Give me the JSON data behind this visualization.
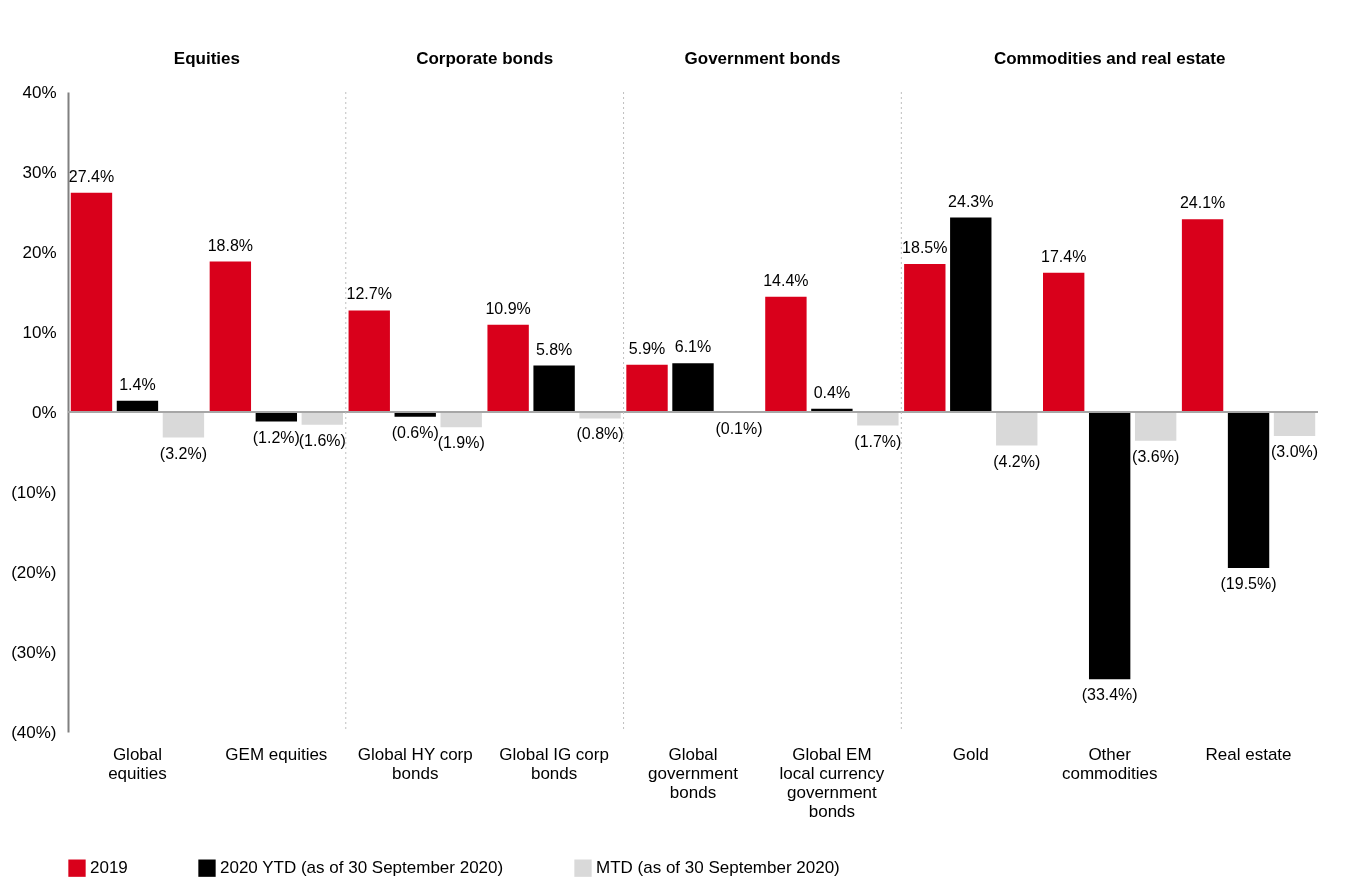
{
  "chart_data": {
    "type": "bar",
    "categories": [
      "Global equities",
      "GEM equities",
      "Global HY corp bonds",
      "Global IG corp bonds",
      "Global government bonds",
      "Global EM local currency government bonds",
      "Gold",
      "Other commodities",
      "Real estate"
    ],
    "series": [
      {
        "name": "2019",
        "color": "#d9001b",
        "values": [
          27.4,
          18.8,
          12.7,
          10.9,
          5.9,
          14.4,
          18.5,
          17.4,
          24.1
        ],
        "value_labels": [
          "27.4%",
          "18.8%",
          "12.7%",
          "10.9%",
          "5.9%",
          "14.4%",
          "18.5%",
          "17.4%",
          "24.1%"
        ]
      },
      {
        "name": "2020 YTD (as of 30 September 2020)",
        "color": "#000000",
        "values": [
          1.4,
          -1.2,
          -0.6,
          5.8,
          6.1,
          0.4,
          24.3,
          -33.4,
          -19.5
        ],
        "value_labels": [
          "1.4%",
          "(1.2%)",
          "(0.6%)",
          "5.8%",
          "6.1%",
          "0.4%",
          "24.3%",
          "(33.4%)",
          "(19.5%)"
        ]
      },
      {
        "name": "MTD (as of 30 September 2020)",
        "color": "#d9d9d9",
        "values": [
          -3.2,
          -1.6,
          -1.9,
          -0.8,
          -0.1,
          -1.7,
          -4.2,
          -3.6,
          -3.0
        ],
        "value_labels": [
          "(3.2%)",
          "(1.6%)",
          "(1.9%)",
          "(0.8%)",
          "(0.1%)",
          "(1.7%)",
          "(4.2%)",
          "(3.6%)",
          "(3.0%)"
        ]
      }
    ],
    "ylim": [
      -40,
      40
    ],
    "yticks": [
      {
        "value": -40,
        "label": "(40%)"
      },
      {
        "value": -30,
        "label": "(30%)"
      },
      {
        "value": -20,
        "label": "(20%)"
      },
      {
        "value": -10,
        "label": "(10%)"
      },
      {
        "value": 0,
        "label": "0%"
      },
      {
        "value": 10,
        "label": "10%"
      },
      {
        "value": 20,
        "label": "20%"
      },
      {
        "value": 30,
        "label": "30%"
      },
      {
        "value": 40,
        "label": "40%"
      }
    ],
    "ref_lines": [
      {
        "axis": "y",
        "value": 0,
        "color": "#a6a6a6"
      }
    ],
    "annotations": [
      "Equities",
      "Corporate bonds",
      "Government bonds",
      "Commodities and real estate"
    ],
    "grid": false,
    "legend": "bottom"
  }
}
